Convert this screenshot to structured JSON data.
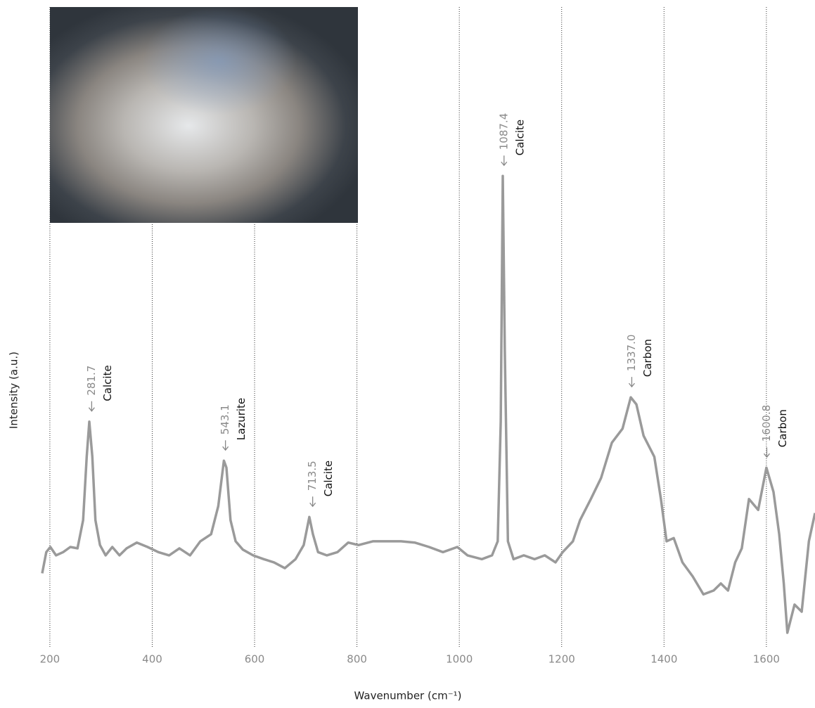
{
  "chart_data": {
    "type": "line",
    "x_label": "Wavenumber (cm⁻¹)",
    "y_label": "Intensity (a.u.)",
    "xlim": [
      185,
      1695
    ],
    "ylim": [
      0,
      100
    ],
    "xticks": [
      200,
      400,
      600,
      800,
      1000,
      1200,
      1400,
      1600
    ],
    "grid": true,
    "series": [
      {
        "color": "#9a9a9a",
        "x": [
          185,
          193,
          201,
          212,
          226,
          240,
          254,
          265,
          272,
          277,
          283,
          289,
          298,
          309,
          322,
          336,
          350,
          370,
          391,
          412,
          433,
          453,
          474,
          494,
          515,
          529,
          540,
          545,
          553,
          563,
          577,
          597,
          618,
          638,
          659,
          680,
          696,
          707,
          714,
          724,
          741,
          762,
          783,
          803,
          831,
          858,
          886,
          913,
          941,
          968,
          996,
          1016,
          1044,
          1064,
          1075,
          1081,
          1085,
          1089,
          1095,
          1106,
          1126,
          1147,
          1167,
          1188,
          1202,
          1222,
          1236,
          1257,
          1277,
          1298,
          1319,
          1335,
          1346,
          1360,
          1381,
          1394,
          1405,
          1419,
          1436,
          1456,
          1477,
          1497,
          1511,
          1525,
          1539,
          1552,
          1566,
          1584,
          1600,
          1614,
          1625,
          1634,
          1641,
          1655,
          1669,
          1683,
          1695
        ],
        "values": [
          11.5,
          14.8,
          15.6,
          14.3,
          14.8,
          15.6,
          15.4,
          19.8,
          29.7,
          35.2,
          29.7,
          19.8,
          15.9,
          14.3,
          15.6,
          14.3,
          15.4,
          16.3,
          15.6,
          14.8,
          14.3,
          15.4,
          14.3,
          16.5,
          17.6,
          22.0,
          29.1,
          28.0,
          19.8,
          16.5,
          15.2,
          14.3,
          13.7,
          13.2,
          12.3,
          13.7,
          15.9,
          20.3,
          17.6,
          14.8,
          14.3,
          14.8,
          16.3,
          15.9,
          16.5,
          16.5,
          16.5,
          16.3,
          15.6,
          14.8,
          15.6,
          14.3,
          13.7,
          14.3,
          16.5,
          35.2,
          73.6,
          46.2,
          16.5,
          13.7,
          14.3,
          13.7,
          14.3,
          13.2,
          14.8,
          16.5,
          19.8,
          23.1,
          26.4,
          31.9,
          34.1,
          39.0,
          37.9,
          33.0,
          29.7,
          23.1,
          16.5,
          17.0,
          13.2,
          11.0,
          8.2,
          8.8,
          9.9,
          8.8,
          13.2,
          15.4,
          23.1,
          21.4,
          28.0,
          24.2,
          17.6,
          9.9,
          2.2,
          6.6,
          5.5,
          16.5,
          20.9
        ]
      }
    ],
    "annotations": [
      {
        "x": 281.7,
        "name": "Calcite"
      },
      {
        "x": 543.1,
        "name": "Lazurite"
      },
      {
        "x": 713.5,
        "name": "Calcite"
      },
      {
        "x": 1087.4,
        "name": "Calcite"
      },
      {
        "x": 1337.0,
        "label": "1337.0",
        "name": "Carbon"
      },
      {
        "x": 1600.8,
        "name": "Carbon"
      }
    ]
  }
}
